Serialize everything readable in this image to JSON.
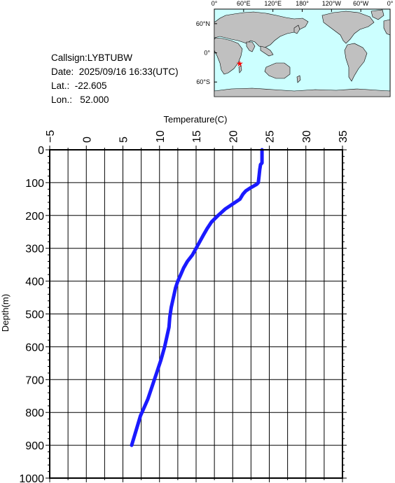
{
  "info": {
    "callsign": "Callsign:LYBTUBW",
    "date": "Date:  2025/09/16 16:33(UTC)",
    "lat": "Lat.:  -22.605",
    "lon": "Lon.:   52.000"
  },
  "map": {
    "top_labels": [
      "0°",
      "60°E",
      "120°E",
      "180°",
      "120°W",
      "60°W",
      "0°"
    ],
    "left_labels": [
      "60°N",
      "0°",
      "60°S"
    ],
    "station_marker": {
      "lat": -22.605,
      "lon": 52.0,
      "color": "#ff0000"
    },
    "ocean_color": "#ccffff",
    "land_color": "#c0c0c0"
  },
  "chart_data": {
    "type": "line",
    "xlabel": "Temperature(C)",
    "ylabel": "Depth(m)",
    "xlim": [
      -5,
      35
    ],
    "ylim": [
      1000,
      0
    ],
    "x_ticks": [
      "-5",
      "0",
      "5",
      "10",
      "15",
      "20",
      "25",
      "30",
      "35"
    ],
    "y_ticks": [
      "0",
      "100",
      "200",
      "300",
      "400",
      "500",
      "600",
      "700",
      "800",
      "900",
      "1000"
    ],
    "grid": true,
    "line_color": "#1a1aff",
    "series": [
      {
        "points": [
          [
            24.0,
            0
          ],
          [
            24.0,
            40
          ],
          [
            23.8,
            45
          ],
          [
            23.7,
            60
          ],
          [
            23.6,
            80
          ],
          [
            23.5,
            100
          ],
          [
            23.3,
            105
          ],
          [
            22.5,
            115
          ],
          [
            21.8,
            125
          ],
          [
            21.4,
            135
          ],
          [
            21.0,
            150
          ],
          [
            20.0,
            165
          ],
          [
            19.0,
            180
          ],
          [
            18.0,
            200
          ],
          [
            17.1,
            220
          ],
          [
            16.5,
            240
          ],
          [
            16.0,
            260
          ],
          [
            15.5,
            280
          ],
          [
            15.0,
            300
          ],
          [
            14.5,
            320
          ],
          [
            13.8,
            340
          ],
          [
            13.3,
            360
          ],
          [
            12.9,
            380
          ],
          [
            12.5,
            400
          ],
          [
            12.2,
            420
          ],
          [
            11.9,
            450
          ],
          [
            11.6,
            480
          ],
          [
            11.4,
            510
          ],
          [
            11.3,
            540
          ],
          [
            11.0,
            570
          ],
          [
            10.7,
            600
          ],
          [
            10.2,
            640
          ],
          [
            9.6,
            680
          ],
          [
            9.0,
            720
          ],
          [
            8.4,
            760
          ],
          [
            7.8,
            790
          ],
          [
            7.4,
            810
          ],
          [
            7.0,
            840
          ],
          [
            6.6,
            870
          ],
          [
            6.2,
            900
          ]
        ]
      }
    ]
  }
}
